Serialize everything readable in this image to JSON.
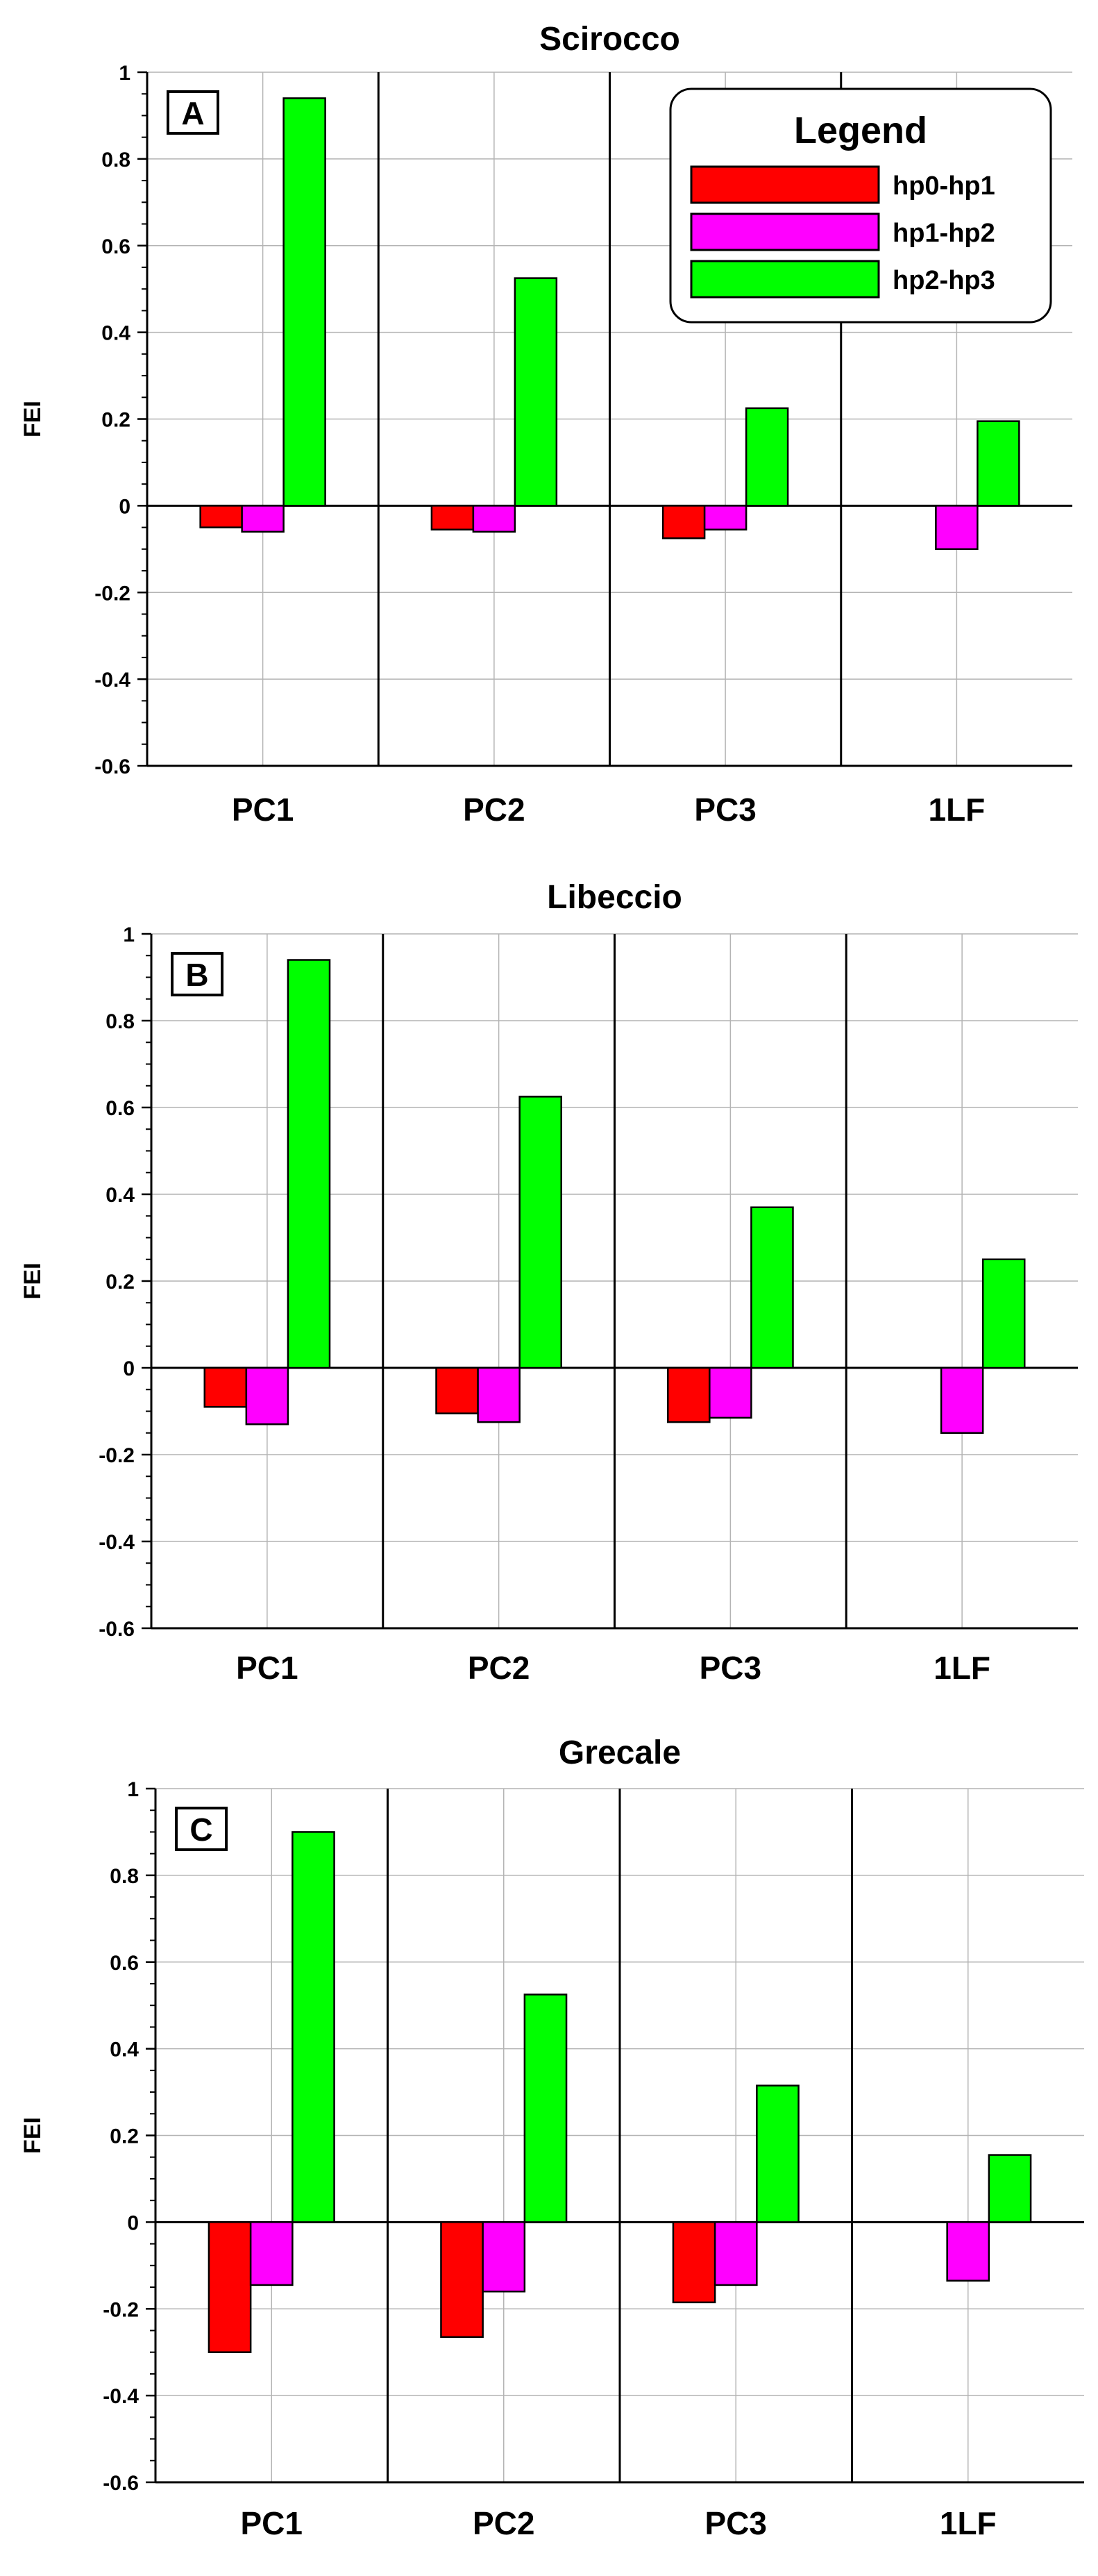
{
  "legend": {
    "title": "Legend",
    "entries": [
      {
        "label": "hp0-hp1",
        "color": "#ff0000"
      },
      {
        "label": "hp1-hp2",
        "color": "#ff00ff"
      },
      {
        "label": "hp2-hp3",
        "color": "#00ff00"
      }
    ]
  },
  "chart_data": [
    {
      "type": "bar",
      "panel_label": "A",
      "title": "Scirocco",
      "xlabel": "",
      "ylabel": "FEI",
      "ylim": [
        -0.6,
        1
      ],
      "yticks": [
        1,
        0.8,
        0.6,
        0.4,
        0.2,
        0,
        -0.2,
        -0.4,
        -0.6
      ],
      "ytick_labels": [
        "1",
        "0.8",
        "0.6",
        "0.4",
        "0.2",
        "0",
        "-0.2",
        "-0.4",
        "-0.6"
      ],
      "grid": true,
      "legend_position": "top-right",
      "categories": [
        "PC1",
        "PC2",
        "PC3",
        "1LF"
      ],
      "series": [
        {
          "name": "hp0-hp1",
          "color": "#ff0000",
          "values": [
            -0.05,
            -0.055,
            -0.075,
            null
          ]
        },
        {
          "name": "hp1-hp2",
          "color": "#ff00ff",
          "values": [
            -0.06,
            -0.06,
            -0.055,
            -0.1
          ]
        },
        {
          "name": "hp2-hp3",
          "color": "#00ff00",
          "values": [
            0.94,
            0.525,
            0.225,
            0.195
          ]
        }
      ]
    },
    {
      "type": "bar",
      "panel_label": "B",
      "title": "Libeccio",
      "xlabel": "",
      "ylabel": "FEI",
      "ylim": [
        -0.6,
        1
      ],
      "yticks": [
        1,
        0.8,
        0.6,
        0.4,
        0.2,
        0,
        -0.2,
        -0.4,
        -0.6
      ],
      "ytick_labels": [
        "1",
        "0.8",
        "0.6",
        "0.4",
        "0.2",
        "0",
        "-0.2",
        "-0.4",
        "-0.6"
      ],
      "grid": true,
      "categories": [
        "PC1",
        "PC2",
        "PC3",
        "1LF"
      ],
      "series": [
        {
          "name": "hp0-hp1",
          "color": "#ff0000",
          "values": [
            -0.09,
            -0.105,
            -0.125,
            null
          ]
        },
        {
          "name": "hp1-hp2",
          "color": "#ff00ff",
          "values": [
            -0.13,
            -0.125,
            -0.115,
            -0.15
          ]
        },
        {
          "name": "hp2-hp3",
          "color": "#00ff00",
          "values": [
            0.94,
            0.625,
            0.37,
            0.25
          ]
        }
      ]
    },
    {
      "type": "bar",
      "panel_label": "C",
      "title": "Grecale",
      "xlabel": "",
      "ylabel": "FEI",
      "ylim": [
        -0.6,
        1
      ],
      "yticks": [
        1,
        0.8,
        0.6,
        0.4,
        0.2,
        0,
        -0.2,
        -0.4,
        -0.6
      ],
      "ytick_labels": [
        "1",
        "0.8",
        "0.6",
        "0.4",
        "0.2",
        "0",
        "-0.2",
        "-0.4",
        "-0.6"
      ],
      "grid": true,
      "categories": [
        "PC1",
        "PC2",
        "PC3",
        "1LF"
      ],
      "series": [
        {
          "name": "hp0-hp1",
          "color": "#ff0000",
          "values": [
            -0.3,
            -0.265,
            -0.185,
            null
          ]
        },
        {
          "name": "hp1-hp2",
          "color": "#ff00ff",
          "values": [
            -0.145,
            -0.16,
            -0.145,
            -0.135
          ]
        },
        {
          "name": "hp2-hp3",
          "color": "#00ff00",
          "values": [
            0.9,
            0.525,
            0.315,
            0.155
          ]
        }
      ]
    }
  ]
}
